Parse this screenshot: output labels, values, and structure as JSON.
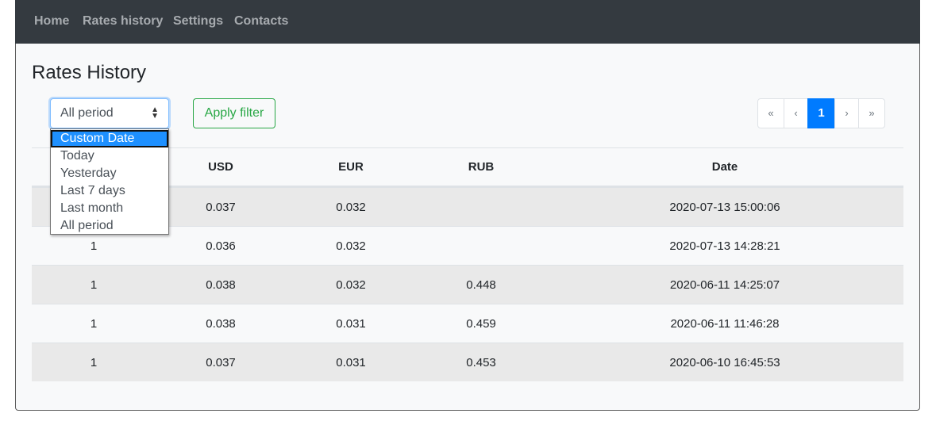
{
  "nav": {
    "links": [
      "Home",
      "Rates history",
      "Settings",
      "Contacts"
    ]
  },
  "title": "Rates History",
  "filter": {
    "selected": "All period",
    "options": [
      "Custom Date",
      "Today",
      "Yesterday",
      "Last 7 days",
      "Last month",
      "All period"
    ],
    "apply": "Apply filter"
  },
  "pagination": [
    "«",
    "‹",
    "1",
    "›",
    "»"
  ],
  "table": {
    "header": [
      null,
      "USD",
      "EUR",
      "RUB",
      "Date"
    ],
    "rows": [
      [
        null,
        "0.037",
        "0.032",
        null,
        "2020-07-13 15:00:06"
      ],
      [
        "1",
        "0.036",
        "0.032",
        null,
        "2020-07-13 14:28:21"
      ],
      [
        "1",
        "0.038",
        "0.032",
        "0.448",
        "2020-06-11 14:25:07"
      ],
      [
        "1",
        "0.038",
        "0.031",
        "0.459",
        "2020-06-11 11:46:28"
      ],
      [
        "1",
        "0.037",
        "0.031",
        "0.453",
        "2020-06-10 16:45:53"
      ]
    ]
  }
}
